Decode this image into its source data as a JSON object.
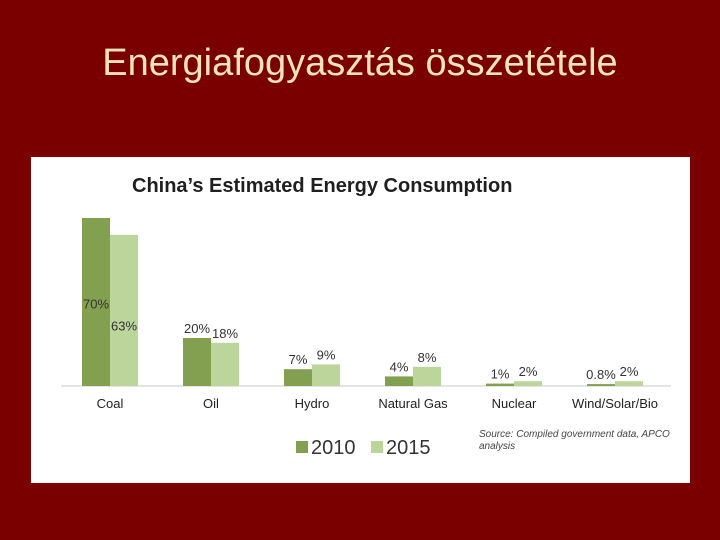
{
  "slide": {
    "title": "Energiafogyasztás összetétele"
  },
  "colors": {
    "background": "#7a0000",
    "title_text": "#f3e3b8",
    "series_2010": "#82a04f",
    "series_2015": "#bcd59b"
  },
  "chart_data": {
    "type": "bar",
    "title": "China’s Estimated Energy Consumption",
    "categories": [
      "Coal",
      "Oil",
      "Hydro",
      "Natural Gas",
      "Nuclear",
      "Wind/Solar/Bio"
    ],
    "series": [
      {
        "name": "2010",
        "values": [
          70,
          20,
          7,
          4,
          1,
          0.8
        ],
        "labels": [
          "70%",
          "20%",
          "7%",
          "4%",
          "1%",
          "0.8%"
        ]
      },
      {
        "name": "2015",
        "values": [
          63,
          18,
          9,
          8,
          2,
          2
        ],
        "labels": [
          "63%",
          "18%",
          "9%",
          "8%",
          "2%",
          "2%"
        ]
      }
    ],
    "ylim": [
      0,
      70
    ],
    "xlabel": "",
    "ylabel": "",
    "legend_position": "bottom-left",
    "source": "Source: Compiled government data, APCO analysis"
  }
}
